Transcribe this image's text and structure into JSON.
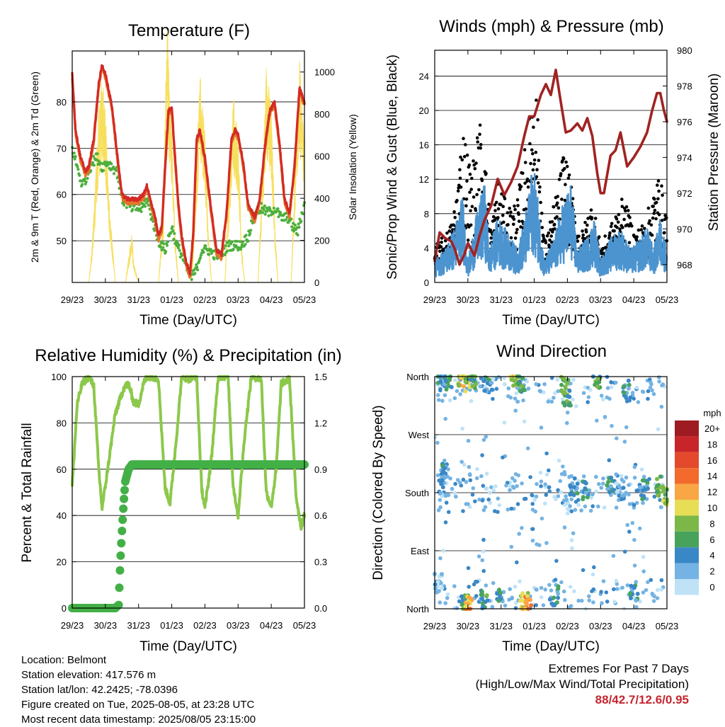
{
  "colors": {
    "temp2m": "#e4762a",
    "temp9m": "#d42a24",
    "dewpoint": "#4daf3c",
    "solar": "#f7df5e",
    "wind": "#4c94cf",
    "gust": "#000000",
    "pressure": "#a02322",
    "rh": "#8cc84b",
    "precip": "#43b047"
  },
  "x_ticks": [
    "29/23",
    "30/23",
    "31/23",
    "01/23",
    "02/23",
    "03/23",
    "04/23",
    "05/23"
  ],
  "chart_data": [
    {
      "type": "line",
      "title": "Temperature (F)",
      "xlabel": "Time (Day/UTC)",
      "ylabel": "2m & 9m T (Red, Orange) & 2m Td (Green)",
      "y2label": "Solar Insolation (Yellow)",
      "ylim": [
        41,
        91
      ],
      "y2lim": [
        0,
        1100
      ],
      "yticks": [
        50,
        60,
        70,
        80
      ],
      "y2ticks": [
        0,
        200,
        400,
        600,
        800,
        1000
      ],
      "grid": "horizontal",
      "series": [
        {
          "key": "temp",
          "x": [
            0,
            0.1,
            0.25,
            0.4,
            0.5,
            0.65,
            0.8,
            0.9,
            1.0,
            1.2,
            1.35,
            1.5,
            1.65,
            1.8,
            2.0,
            2.15,
            2.25,
            2.35,
            2.5,
            2.6,
            2.7,
            2.8,
            2.9,
            3.0,
            3.1,
            3.2,
            3.3,
            3.45,
            3.55,
            3.65,
            3.75,
            3.85,
            4.0,
            4.2,
            4.35,
            4.5,
            4.65,
            4.8,
            4.9,
            5.0,
            5.15,
            5.3,
            5.5,
            5.65,
            5.8,
            5.95,
            6.1,
            6.25,
            6.4,
            6.55,
            6.7,
            6.85,
            7.0
          ],
          "y": [
            86,
            74,
            68,
            65,
            66,
            72,
            84,
            88,
            86,
            79,
            69,
            60,
            59,
            59,
            59,
            60,
            62,
            59,
            55,
            51,
            53,
            66,
            78,
            79,
            68,
            58,
            51,
            45,
            43,
            52,
            72,
            74,
            68,
            56,
            48,
            47,
            56,
            72,
            74,
            73,
            67,
            58,
            55,
            59,
            70,
            78,
            80,
            71,
            59,
            56,
            66,
            83,
            80
          ]
        },
        {
          "key": "dewpoint",
          "x": [
            0,
            0.15,
            0.3,
            0.45,
            0.6,
            0.75,
            0.9,
            1.05,
            1.2,
            1.35,
            1.5,
            1.65,
            1.8,
            1.95,
            2.1,
            2.25,
            2.4,
            2.6,
            2.8,
            3.0,
            3.15,
            3.3,
            3.45,
            3.6,
            3.75,
            3.9,
            4.1,
            4.3,
            4.5,
            4.7,
            4.9,
            5.1,
            5.3,
            5.5,
            5.7,
            5.9,
            6.1,
            6.3,
            6.5,
            6.65,
            6.8,
            7.0
          ],
          "y": [
            70,
            66,
            62,
            64,
            67,
            68,
            66,
            67,
            66,
            65,
            59,
            58,
            57,
            57,
            57,
            59,
            55,
            50,
            48,
            53,
            49,
            47,
            44,
            42,
            44,
            48,
            48,
            47,
            47,
            49,
            49,
            49,
            51,
            56,
            57,
            56,
            57,
            55,
            55,
            53,
            52,
            58
          ]
        },
        {
          "key": "solar",
          "x": [
            0,
            0.5,
            0.6,
            0.8,
            0.9,
            1.0,
            1.1,
            1.3,
            1.6,
            1.65,
            1.8,
            1.85,
            2.0,
            2.6,
            2.75,
            2.8,
            2.87,
            2.92,
            3.0,
            3.1,
            3.2,
            3.6,
            3.75,
            3.85,
            4.0,
            4.1,
            4.2,
            4.6,
            4.75,
            4.85,
            5.0,
            5.1,
            5.2,
            5.6,
            5.75,
            5.85,
            6.0,
            6.1,
            6.2,
            6.6,
            6.75,
            6.85,
            7.0
          ],
          "y": [
            0,
            0,
            150,
            700,
            820,
            700,
            350,
            0,
            0,
            50,
            200,
            80,
            0,
            0,
            300,
            700,
            1050,
            800,
            600,
            200,
            0,
            0,
            500,
            850,
            600,
            200,
            0,
            0,
            450,
            750,
            600,
            150,
            0,
            0,
            500,
            850,
            700,
            250,
            0,
            0,
            600,
            900,
            550
          ]
        }
      ]
    },
    {
      "type": "line",
      "title": "Winds (mph) & Pressure (mb)",
      "xlabel": "Time (Day/UTC)",
      "ylabel": "Sonic/Prop Wind & Gust (Blue, Black)",
      "y2label": "Station Pressure (Maroon)",
      "ylim": [
        0,
        27
      ],
      "y2lim": [
        967,
        980
      ],
      "yticks": [
        0,
        4,
        8,
        12,
        16,
        20,
        24
      ],
      "y2ticks": [
        968,
        970,
        972,
        974,
        976,
        978,
        980
      ],
      "grid": "horizontal",
      "series": [
        {
          "key": "wind",
          "x": [
            0,
            0.3,
            0.6,
            0.85,
            1.0,
            1.25,
            1.5,
            1.65,
            1.9,
            2.1,
            2.3,
            2.5,
            2.65,
            2.8,
            2.95,
            3.1,
            3.3,
            3.6,
            3.85,
            4.1,
            4.3,
            4.6,
            4.8,
            5.0,
            5.3,
            5.6,
            5.9,
            6.2,
            6.4,
            6.6,
            6.8,
            7.0
          ],
          "y": [
            2,
            3,
            5,
            8,
            2,
            6,
            9,
            3,
            6,
            5,
            4,
            3,
            5,
            7,
            11,
            8,
            2,
            4,
            7,
            9,
            3,
            4,
            6,
            2,
            4,
            5,
            3,
            4,
            5,
            3,
            6,
            3
          ]
        },
        {
          "key": "gust",
          "x": [
            0.1,
            0.5,
            0.85,
            1.1,
            1.4,
            1.7,
            1.9,
            2.2,
            2.5,
            2.7,
            2.9,
            3.0,
            3.3,
            3.5,
            3.75,
            3.9,
            4.2,
            4.4,
            4.75,
            5.0,
            5.3,
            5.6,
            5.8,
            6.1,
            6.3,
            6.6,
            6.8,
            6.9
          ],
          "y": [
            3,
            5,
            17,
            12,
            18,
            6,
            11,
            8,
            9,
            14,
            19,
            25,
            4,
            7,
            11,
            15,
            8,
            5,
            9,
            4,
            6,
            9,
            8,
            5,
            6,
            10,
            12,
            8
          ]
        },
        {
          "key": "pressure",
          "x": [
            0,
            0.15,
            0.3,
            0.5,
            0.6,
            0.75,
            0.9,
            1.0,
            1.2,
            1.35,
            1.5,
            1.7,
            1.9,
            2.1,
            2.3,
            2.5,
            2.7,
            2.85,
            3.0,
            3.2,
            3.35,
            3.5,
            3.65,
            3.8,
            3.95,
            4.1,
            4.3,
            4.45,
            4.6,
            4.75,
            4.9,
            5.0,
            5.1,
            5.3,
            5.45,
            5.6,
            5.8,
            6.0,
            6.2,
            6.4,
            6.55,
            6.7,
            6.8,
            6.9,
            7.0
          ],
          "y": [
            968.2,
            969.8,
            969.5,
            969.3,
            968.9,
            968.0,
            968.6,
            969.2,
            968.5,
            969.6,
            970.5,
            971.3,
            972.8,
            971.9,
            972.6,
            973.5,
            975.2,
            976.3,
            976.3,
            977.5,
            978.1,
            977.5,
            978.9,
            977.1,
            975.4,
            975.5,
            975.9,
            975.5,
            976.2,
            975.2,
            973.1,
            972.0,
            972.0,
            974.1,
            974.4,
            975.4,
            973.5,
            974.0,
            974.6,
            975.4,
            976.6,
            977.6,
            977.6,
            976.7,
            976.0
          ]
        }
      ]
    },
    {
      "type": "line",
      "title": "Relative Humidity (%) & Precipitation (in)",
      "xlabel": "Time (Day/UTC)",
      "ylabel": "Percent & Total Rainfall",
      "ylim": [
        0,
        100
      ],
      "y2lim": [
        0,
        1.5
      ],
      "yticks": [
        0,
        20,
        40,
        60,
        80,
        100
      ],
      "y2ticks": [
        "0.0",
        "0.3",
        "0.6",
        "0.9",
        "1.2",
        "1.5"
      ],
      "grid": "horizontal",
      "series": [
        {
          "key": "rh",
          "x": [
            0,
            0.15,
            0.3,
            0.5,
            0.65,
            0.8,
            0.9,
            1.05,
            1.3,
            1.55,
            1.7,
            1.85,
            2.0,
            2.15,
            2.25,
            2.4,
            2.6,
            2.8,
            2.95,
            3.15,
            3.3,
            3.5,
            3.75,
            3.9,
            4.0,
            4.2,
            4.4,
            4.7,
            4.85,
            5.0,
            5.2,
            5.4,
            5.7,
            5.85,
            6.0,
            6.15,
            6.3,
            6.55,
            6.75,
            6.9,
            7.0
          ],
          "y": [
            53,
            88,
            97,
            100,
            96,
            60,
            43,
            58,
            84,
            95,
            97,
            89,
            88,
            97,
            100,
            100,
            99,
            52,
            45,
            75,
            100,
            99,
            100,
            52,
            43,
            65,
            100,
            100,
            53,
            40,
            75,
            100,
            99,
            50,
            44,
            60,
            97,
            99,
            48,
            35,
            40
          ]
        },
        {
          "key": "precip",
          "x": [
            0,
            1.3,
            1.4,
            1.45,
            1.5,
            1.55,
            1.6,
            1.7,
            1.8,
            2.0,
            7.0
          ],
          "y": [
            0,
            0,
            0.02,
            0.3,
            0.5,
            0.68,
            0.82,
            0.9,
            0.93,
            0.93,
            0.93
          ]
        }
      ]
    },
    {
      "type": "scatter",
      "title": "Wind Direction",
      "xlabel": "Time (Day/UTC)",
      "ylabel": "Direction (Colored By Speed)",
      "ylim": [
        0,
        360
      ],
      "ytick_labels": [
        "North",
        "East",
        "South",
        "West",
        "North"
      ],
      "yticks": [
        0,
        90,
        180,
        270,
        360
      ],
      "grid": "horizontal",
      "legend": {
        "placement": "right",
        "title": "mph",
        "labels": [
          "20+",
          "18",
          "16",
          "14",
          "12",
          "10",
          "8",
          "6",
          "4",
          "2",
          "0"
        ],
        "colors": [
          "#9e1b21",
          "#c8252a",
          "#e34a2b",
          "#f26b2d",
          "#f9a644",
          "#e8de56",
          "#7cb848",
          "#47a35c",
          "#3a87c6",
          "#74b3e3",
          "#bfe2f7"
        ]
      },
      "clusters": [
        {
          "x": 0.2,
          "dir": 360,
          "speed": 4
        },
        {
          "x": 0.4,
          "dir": 355,
          "speed": 6
        },
        {
          "x": 0.8,
          "dir": 358,
          "speed": 10
        },
        {
          "x": 1.0,
          "dir": 350,
          "speed": 8
        },
        {
          "x": 1.2,
          "dir": 356,
          "speed": 6
        },
        {
          "x": 1.6,
          "dir": 345,
          "speed": 4
        },
        {
          "x": 2.4,
          "dir": 355,
          "speed": 10
        },
        {
          "x": 2.6,
          "dir": 350,
          "speed": 6
        },
        {
          "x": 3.9,
          "dir": 345,
          "speed": 8
        },
        {
          "x": 4.0,
          "dir": 330,
          "speed": 6
        },
        {
          "x": 4.9,
          "dir": 355,
          "speed": 6
        },
        {
          "x": 5.8,
          "dir": 340,
          "speed": 4
        },
        {
          "x": 0.3,
          "dir": 210,
          "speed": 4
        },
        {
          "x": 0.25,
          "dir": 190,
          "speed": 2
        },
        {
          "x": 4.2,
          "dir": 190,
          "speed": 4
        },
        {
          "x": 4.5,
          "dir": 185,
          "speed": 4
        },
        {
          "x": 5.3,
          "dir": 190,
          "speed": 4
        },
        {
          "x": 5.6,
          "dir": 185,
          "speed": 2
        },
        {
          "x": 6.3,
          "dir": 185,
          "speed": 4
        },
        {
          "x": 6.8,
          "dir": 190,
          "speed": 6
        },
        {
          "x": 6.95,
          "dir": 175,
          "speed": 8
        },
        {
          "x": 0.9,
          "dir": 10,
          "speed": 6
        },
        {
          "x": 1.0,
          "dir": 5,
          "speed": 12
        },
        {
          "x": 1.5,
          "dir": 15,
          "speed": 6
        },
        {
          "x": 2.0,
          "dir": 20,
          "speed": 4
        },
        {
          "x": 2.7,
          "dir": 10,
          "speed": 10
        },
        {
          "x": 2.8,
          "dir": 5,
          "speed": 12
        },
        {
          "x": 3.6,
          "dir": 20,
          "speed": 4
        },
        {
          "x": 6.0,
          "dir": 25,
          "speed": 4
        },
        {
          "x": 0.1,
          "dir": 40,
          "speed": 2
        }
      ]
    }
  ],
  "info": {
    "location": "Location: Belmont",
    "elevation": "Station elevation: 417.576 m",
    "latlon": "Station lat/lon: 42.2425; -78.0396",
    "created": "Figure created on Tue, 2025-08-05, at 23:28 UTC",
    "recent": "Most recent data timestamp: 2025/08/05 23:15:00"
  },
  "extremes": {
    "title": "Extremes For Past 7 Days",
    "subtitle": "(High/Low/Max Wind/Total Precipitation)",
    "values": "88/42.7/12.6/0.95"
  }
}
